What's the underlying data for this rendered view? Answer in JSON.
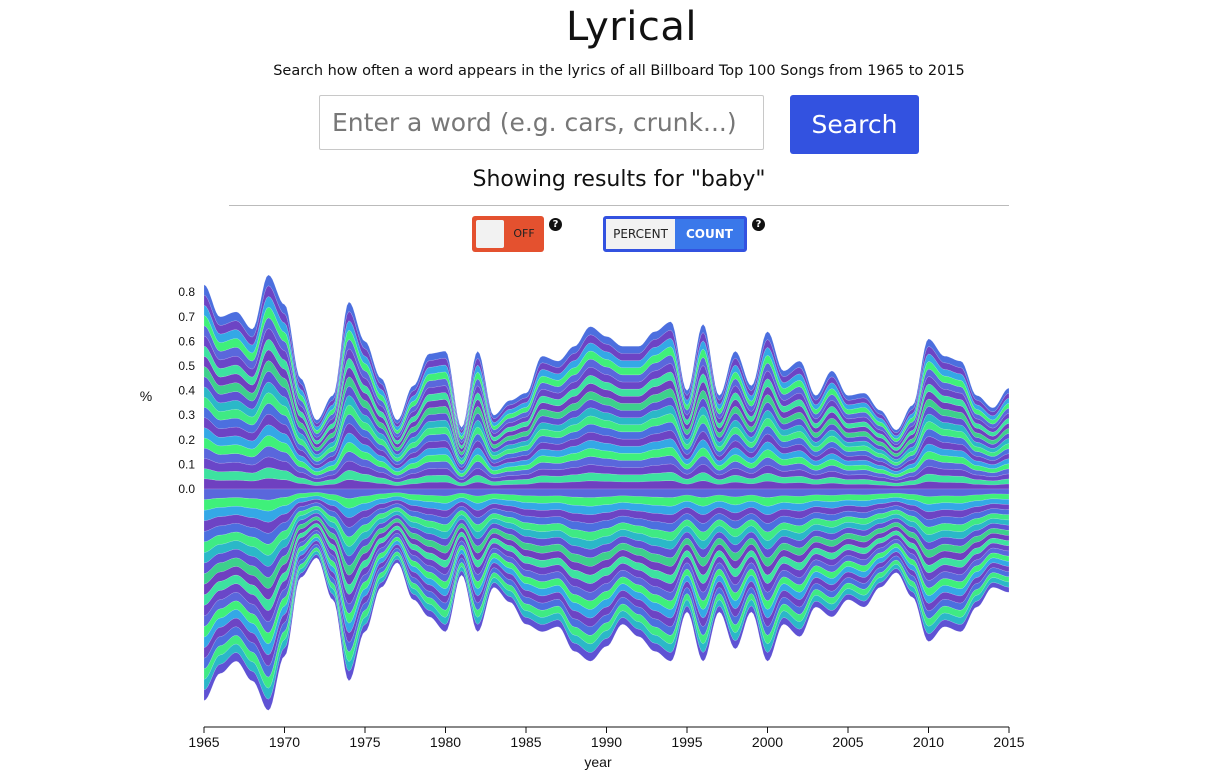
{
  "header": {
    "title": "Lyrical",
    "subtitle": "Search how often a word appears in the lyrics of all Billboard Top 100 Songs from 1965 to 2015"
  },
  "search": {
    "placeholder": "Enter a word (e.g. cars, crunk...)",
    "value": "",
    "button_label": "Search"
  },
  "results": {
    "text": "Showing results for \"baby\""
  },
  "controls": {
    "toggle_label": "OFF",
    "toggle_color": "#e4512f",
    "help_glyph": "?",
    "mode_options": [
      "PERCENT",
      "COUNT"
    ],
    "mode_selected": "COUNT",
    "accent": "#3352e0"
  },
  "chart_data": {
    "type": "area",
    "layout": "streamgraph",
    "xlabel": "year",
    "ylabel": "%",
    "x_ticks": [
      1965,
      1970,
      1975,
      1980,
      1985,
      1990,
      1995,
      2000,
      2005,
      2010,
      2015
    ],
    "y_ticks": [
      0.0,
      0.1,
      0.2,
      0.3,
      0.4,
      0.5,
      0.6,
      0.7,
      0.8
    ],
    "y_tick_labels": [
      "0.0",
      "0.1",
      "0.2",
      "0.3",
      "0.4",
      "0.5",
      "0.6",
      "0.7",
      "0.8"
    ],
    "xlim": [
      1965,
      2015
    ],
    "years": [
      1965,
      1966,
      1967,
      1968,
      1969,
      1970,
      1971,
      1972,
      1973,
      1974,
      1975,
      1976,
      1977,
      1978,
      1979,
      1980,
      1981,
      1982,
      1983,
      1984,
      1985,
      1986,
      1987,
      1988,
      1989,
      1990,
      1991,
      1992,
      1993,
      1994,
      1995,
      1996,
      1997,
      1998,
      1999,
      2000,
      2001,
      2002,
      2003,
      2004,
      2005,
      2006,
      2007,
      2008,
      2009,
      2010,
      2011,
      2012,
      2013,
      2014,
      2015
    ],
    "upper_total": [
      0.83,
      0.7,
      0.72,
      0.65,
      0.87,
      0.75,
      0.45,
      0.28,
      0.38,
      0.76,
      0.6,
      0.45,
      0.28,
      0.42,
      0.55,
      0.56,
      0.25,
      0.56,
      0.3,
      0.36,
      0.39,
      0.54,
      0.52,
      0.58,
      0.66,
      0.62,
      0.58,
      0.58,
      0.64,
      0.68,
      0.4,
      0.67,
      0.38,
      0.56,
      0.42,
      0.64,
      0.48,
      0.52,
      0.38,
      0.48,
      0.38,
      0.39,
      0.32,
      0.24,
      0.34,
      0.61,
      0.54,
      0.52,
      0.38,
      0.33,
      0.41
    ],
    "lower_total": [
      0.86,
      0.75,
      0.7,
      0.78,
      0.9,
      0.68,
      0.36,
      0.28,
      0.45,
      0.78,
      0.58,
      0.4,
      0.3,
      0.45,
      0.52,
      0.58,
      0.35,
      0.58,
      0.4,
      0.46,
      0.55,
      0.58,
      0.56,
      0.66,
      0.7,
      0.64,
      0.55,
      0.6,
      0.66,
      0.7,
      0.5,
      0.7,
      0.5,
      0.65,
      0.5,
      0.7,
      0.55,
      0.6,
      0.48,
      0.52,
      0.45,
      0.48,
      0.4,
      0.34,
      0.44,
      0.62,
      0.56,
      0.58,
      0.48,
      0.4,
      0.42
    ],
    "layers": 20,
    "layer_colors": [
      "#6f40c0",
      "#3de2a0",
      "#6a46c8",
      "#5a67dc",
      "#3ff07a",
      "#34a8e6",
      "#6d44c4",
      "#4c6fdf",
      "#3fea84",
      "#2bb8c8",
      "#5f52d4",
      "#3dd08c"
    ],
    "baseline_color": "#5a5fd8"
  }
}
